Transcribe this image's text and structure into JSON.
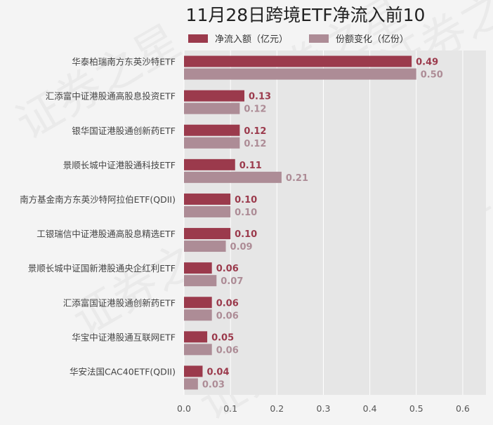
{
  "chart_data": {
    "type": "bar",
    "orientation": "horizontal",
    "title": "11月28日跨境ETF净流入前10",
    "categories": [
      "华泰柏瑞南方东英沙特ETF",
      "汇添富中证港股通高股息投资ETF",
      "银华国证港股通创新药ETF",
      "景顺长城中证港股通科技ETF",
      "南方基金南方东英沙特阿拉伯ETF(QDII)",
      "工银瑞信中证港股通高股息精选ETF",
      "景顺长城中证国新港股通央企红利ETF",
      "汇添富国证港股通创新药ETF",
      "华宝中证港股通互联网ETF",
      "华安法国CAC40ETF(QDII)"
    ],
    "series": [
      {
        "name": "净流入额（亿元）",
        "color": "#9b3a4c",
        "values": [
          0.49,
          0.13,
          0.12,
          0.11,
          0.1,
          0.1,
          0.06,
          0.06,
          0.05,
          0.04
        ],
        "labels": [
          "0.49",
          "0.13",
          "0.12",
          "0.11",
          "0.10",
          "0.10",
          "0.06",
          "0.06",
          "0.05",
          "0.04"
        ]
      },
      {
        "name": "份额变化（亿份）",
        "color": "#ad8c96",
        "values": [
          0.5,
          0.12,
          0.12,
          0.21,
          0.1,
          0.09,
          0.07,
          0.06,
          0.06,
          0.03
        ],
        "labels": [
          "0.50",
          "0.12",
          "0.12",
          "0.21",
          "0.10",
          "0.09",
          "0.07",
          "0.06",
          "0.06",
          "0.03"
        ]
      }
    ],
    "xlim": [
      0,
      0.65
    ],
    "xticks": [
      "0.0",
      "0.1",
      "0.2",
      "0.3",
      "0.4",
      "0.5",
      "0.6"
    ],
    "grid": true,
    "legend": "top"
  }
}
